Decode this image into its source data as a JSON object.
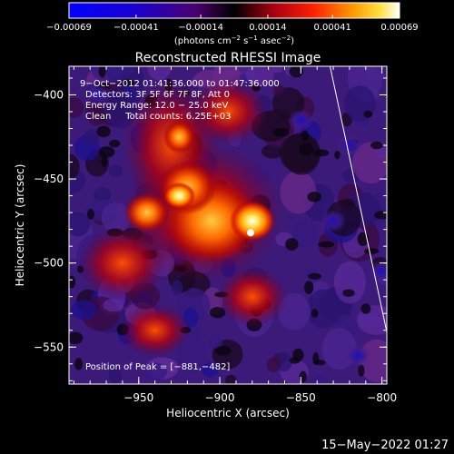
{
  "colorbar": {
    "tick_labels": [
      "-0.00069",
      "-0.00041",
      "-0.00014",
      "0.00014",
      "0.00041",
      "0.00069"
    ],
    "range": [
      -0.00069,
      0.00069
    ],
    "unit_label": "(photons cm⁻² s⁻¹ asec⁻²)"
  },
  "chart_data": {
    "type": "heatmap",
    "title": "Reconstructed RHESSI Image",
    "xlabel": "Heliocentric X (arcsec)",
    "ylabel": "Heliocentric Y (arcsec)",
    "xlim": [
      -993,
      -797
    ],
    "ylim": [
      -572,
      -383
    ],
    "x_ticks": [
      -950,
      -900,
      -850,
      -800
    ],
    "y_ticks": [
      -400,
      -450,
      -500,
      -550
    ],
    "x_tick_labels": [
      "−950",
      "−900",
      "−850",
      "−800"
    ],
    "y_tick_labels": [
      "−400",
      "−450",
      "−500",
      "−550"
    ],
    "peak": [
      -881,
      -482
    ],
    "limb_line": [
      [
        -832,
        -383
      ],
      [
        -797,
        -541
      ]
    ],
    "info_lines": [
      "9−Oct−2012 01:41:36.000 to 01:47:36.000",
      "Detectors: 3F 5F 6F 7F 8F, Att 0",
      "Energy Range: 12.0 − 25.0 keV",
      "Clean     Total counts: 6.25E+03"
    ],
    "peak_label": "Position of Peak = [−881,−482]"
  },
  "colors": {
    "background": "#000000",
    "text": "#ffffff",
    "limb": "#ffffff"
  },
  "timestamp": "15−May−2022 01:27"
}
